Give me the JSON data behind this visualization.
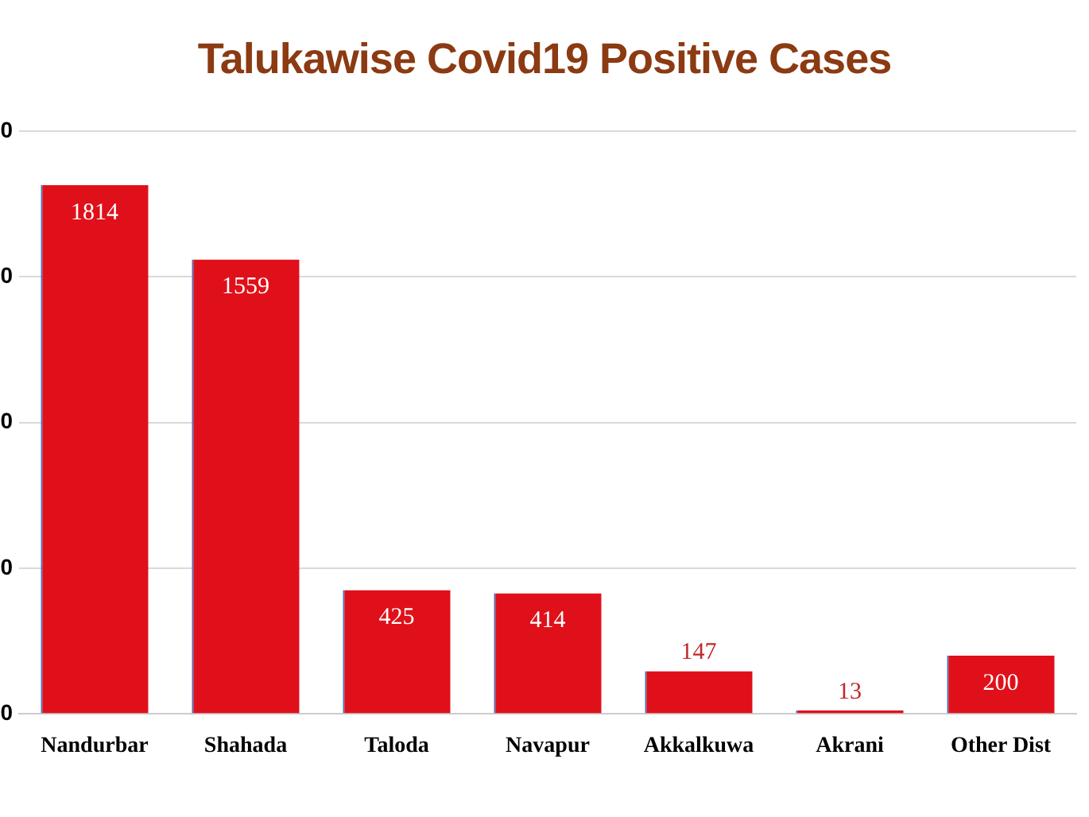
{
  "chart_data": {
    "type": "bar",
    "title": "Talukawise Covid19 Positive Cases",
    "categories": [
      "Nandurbar",
      "Shahada",
      "Taloda",
      "Navapur",
      "Akkalkuwa",
      "Akrani",
      "Other Dist"
    ],
    "values": [
      1814,
      1559,
      425,
      414,
      147,
      13,
      200
    ],
    "color": "#e0101a",
    "ylim": [
      0,
      2000
    ],
    "yticks": [
      {
        "value": 0,
        "label": null
      },
      {
        "value": 500,
        "label": null
      },
      {
        "value": 1000,
        "label": null
      },
      {
        "value": 1500,
        "label": null
      },
      {
        "value": 2000,
        "label": null
      }
    ],
    "grid": "y",
    "data_labels": true,
    "annotations": [
      "0",
      "0",
      "0",
      "0",
      "0"
    ]
  }
}
